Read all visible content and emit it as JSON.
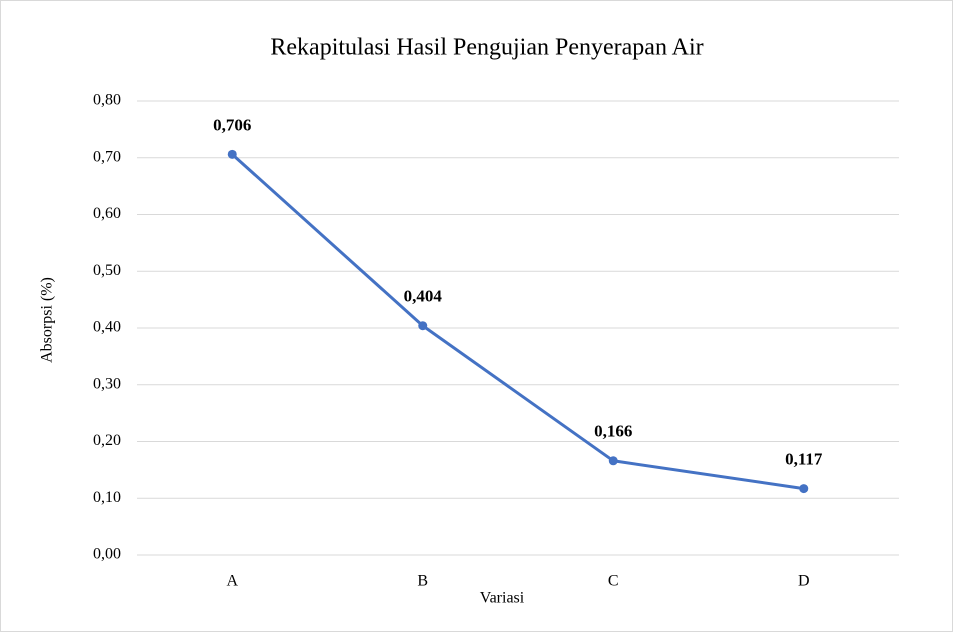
{
  "chart_data": {
    "type": "line",
    "title": "Rekapitulasi Hasil Pengujian Penyerapan Air",
    "xlabel": "Variasi",
    "ylabel": "Absorpsi (%)",
    "categories": [
      "A",
      "B",
      "C",
      "D"
    ],
    "values": [
      0.706,
      0.404,
      0.166,
      0.117
    ],
    "value_labels": [
      "0,706",
      "0,404",
      "0,166",
      "0,117"
    ],
    "color": "#4472c4",
    "ylim": [
      0,
      0.8
    ],
    "yticks": [
      {
        "value": 0,
        "label": "0,00"
      },
      {
        "value": 0.1,
        "label": "0,10"
      },
      {
        "value": 0.2,
        "label": "0,20"
      },
      {
        "value": 0.3,
        "label": "0,30"
      },
      {
        "value": 0.4,
        "label": "0,40"
      },
      {
        "value": 0.5,
        "label": "0,50"
      },
      {
        "value": 0.6,
        "label": "0,60"
      },
      {
        "value": 0.7,
        "label": "0,70"
      },
      {
        "value": 0.8,
        "label": "0,80"
      }
    ],
    "grid": true
  }
}
